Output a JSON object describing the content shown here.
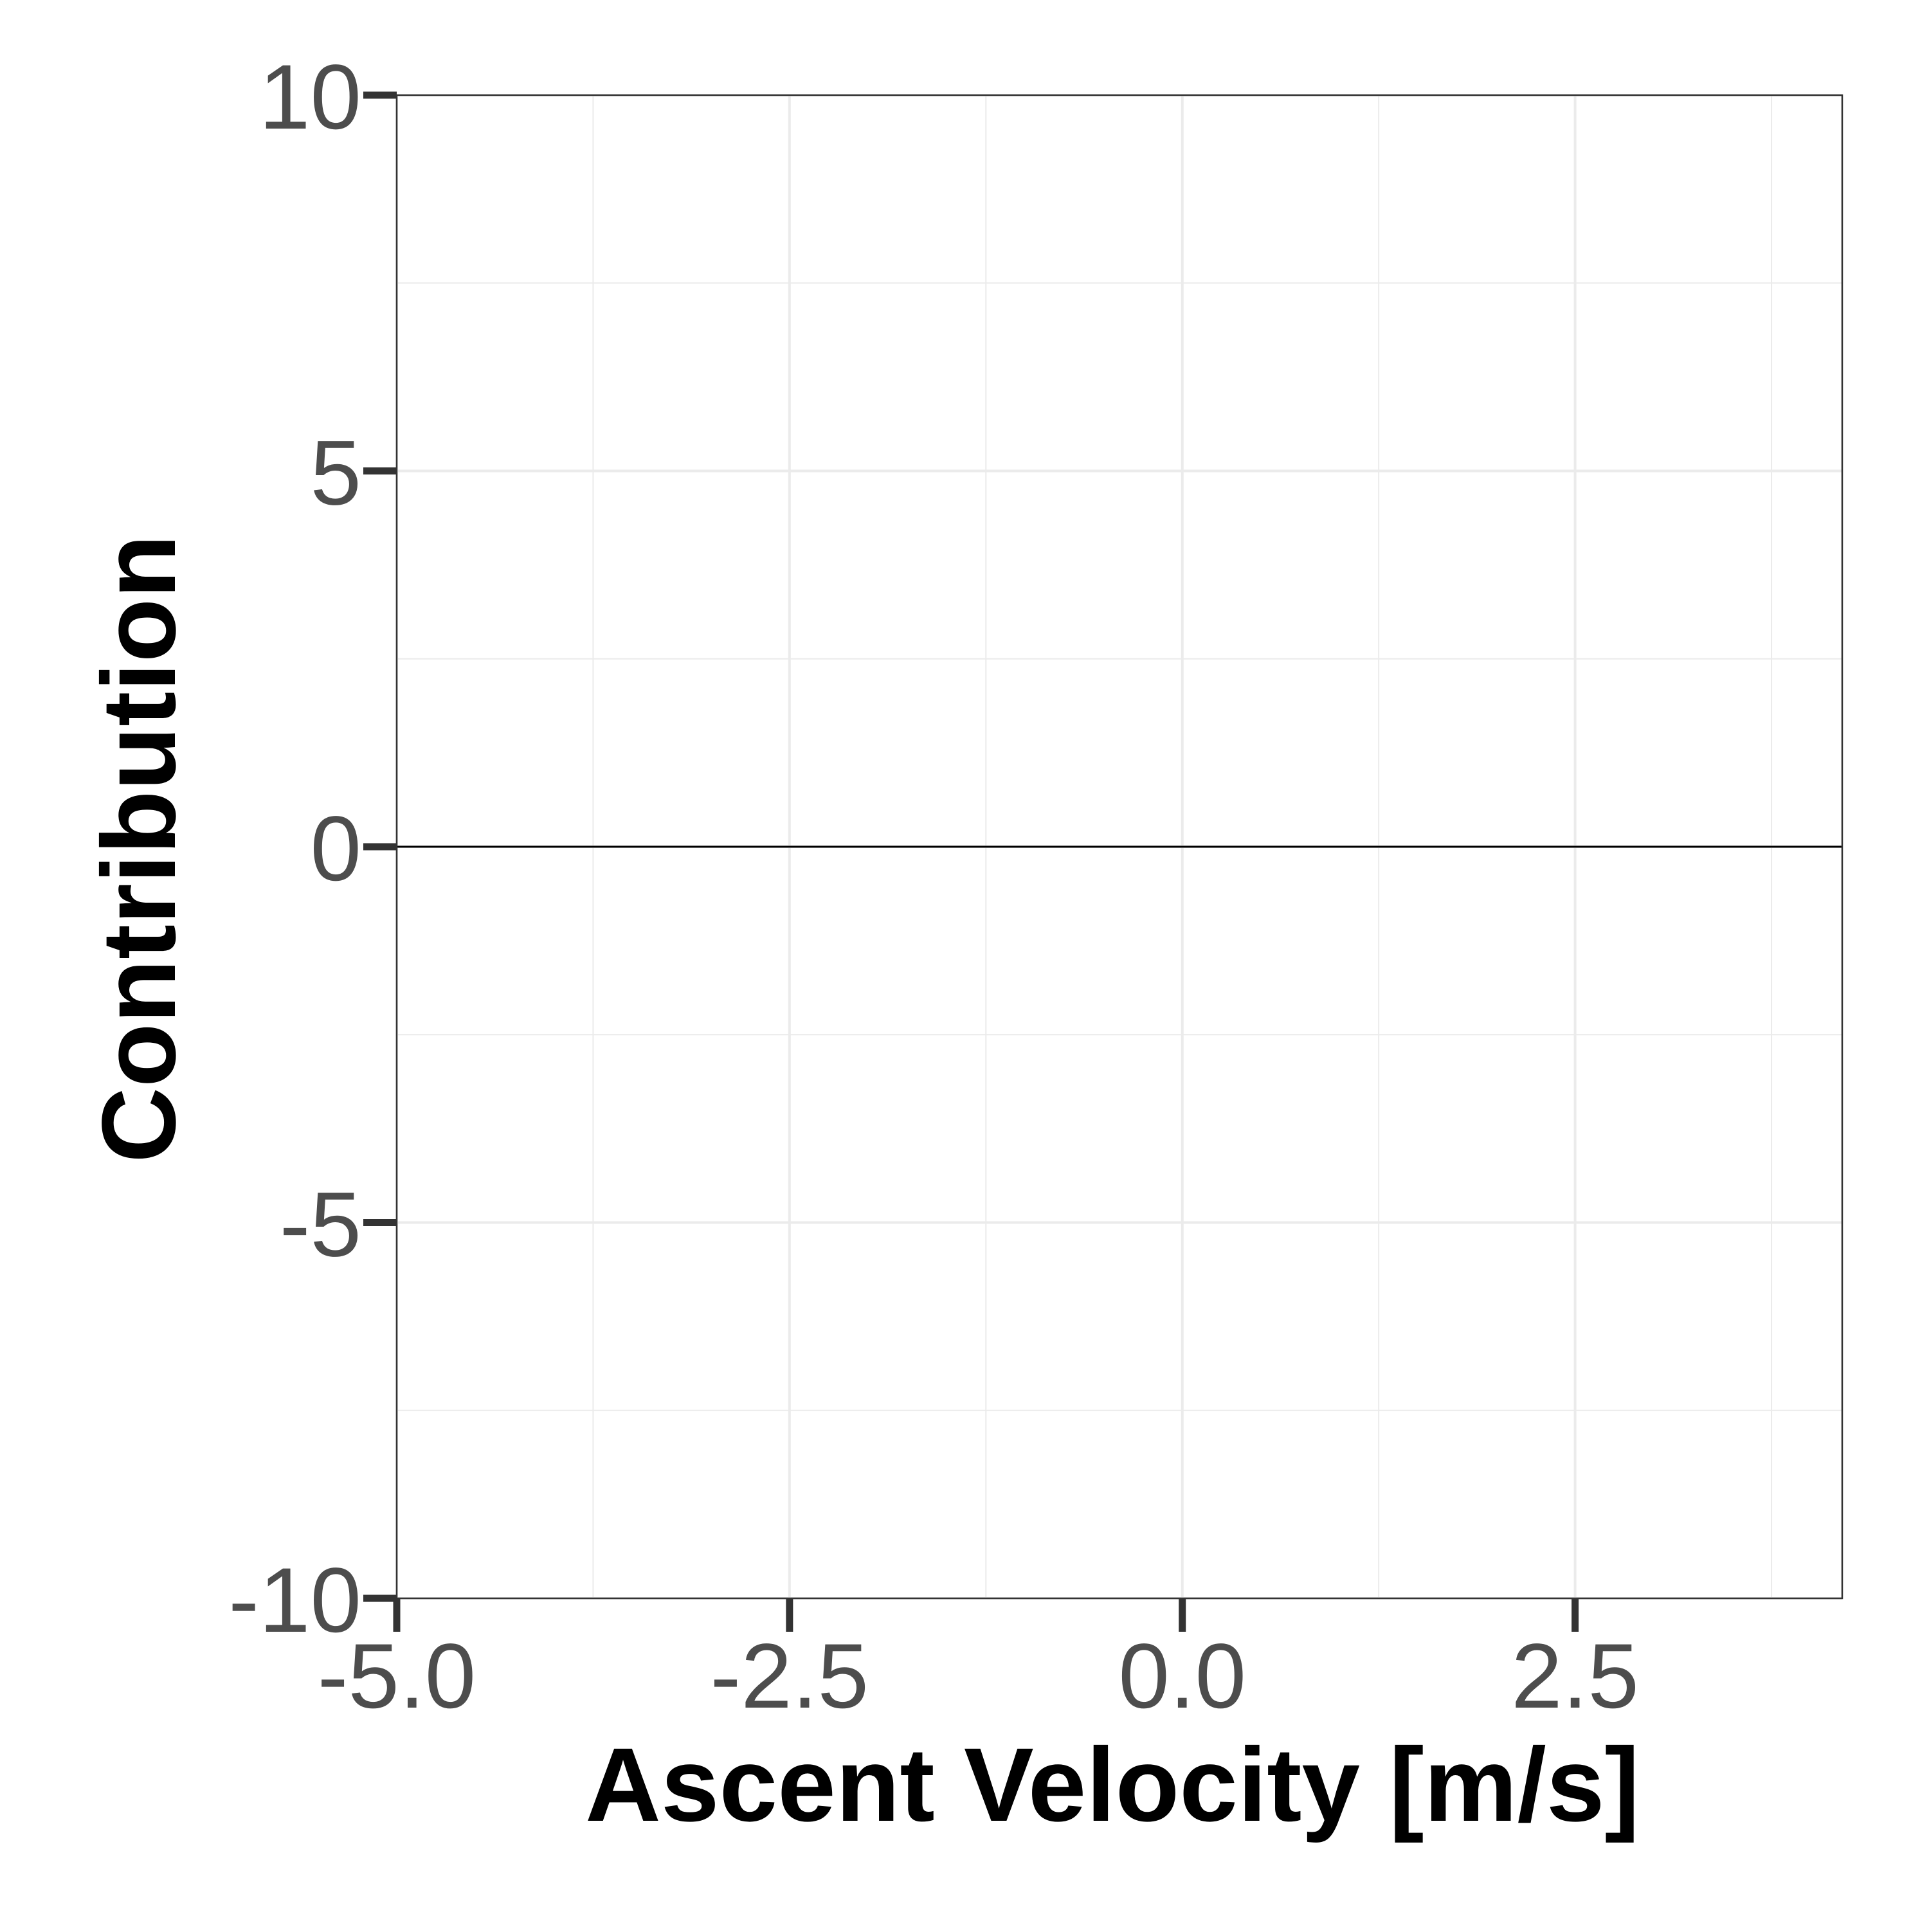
{
  "chart_data": {
    "type": "line",
    "title": "",
    "xlabel": "Ascent Velocity [m/s]",
    "ylabel": "Contribution",
    "xlim": [
      -5.0,
      4.2
    ],
    "ylim": [
      -10,
      10
    ],
    "x_ticks": [
      -5.0,
      -2.5,
      0.0,
      2.5
    ],
    "x_tick_labels": [
      "-5.0",
      "-2.5",
      "0.0",
      "2.5"
    ],
    "x_minor_ticks": [
      -3.75,
      -1.25,
      1.25,
      3.75
    ],
    "y_ticks": [
      10,
      5,
      0,
      -5,
      -10
    ],
    "y_tick_labels": [
      "10",
      "5",
      "0",
      "-5",
      "-10"
    ],
    "y_minor_ticks": [
      7.5,
      2.5,
      -2.5,
      -7.5
    ],
    "series": [
      {
        "x": [
          -5.0,
          4.2
        ],
        "y": [
          0,
          0
        ],
        "color": "#000000"
      }
    ],
    "grid": true,
    "legend": "none",
    "colors": {
      "background": "#ffffff",
      "grid": "#ebebeb",
      "panel_border": "#333333",
      "tick_label": "#4d4d4d",
      "axis_title": "#000000"
    }
  }
}
